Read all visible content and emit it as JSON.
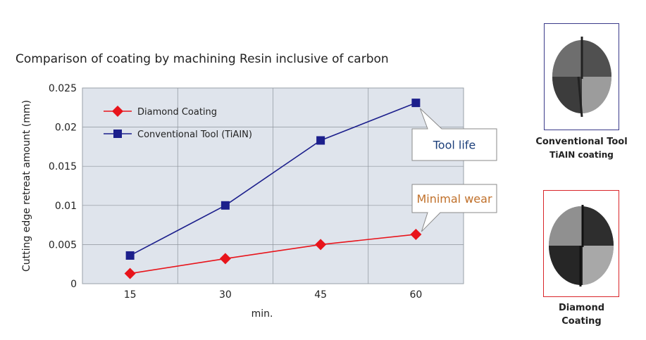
{
  "title": "Comparison of coating by machining Resin inclusive of carbon",
  "chart_data": {
    "type": "line",
    "title": "Comparison of coating by machining Resin inclusive of carbon",
    "xlabel": "min.",
    "ylabel": "Cutting edge retreat amount (mm)",
    "x": [
      15,
      30,
      45,
      60
    ],
    "x_tick_labels": [
      "15",
      "30",
      "45",
      "60"
    ],
    "ylim": [
      0,
      0.025
    ],
    "y_ticks": [
      0,
      0.005,
      0.01,
      0.015,
      0.02,
      0.025
    ],
    "y_tick_labels": [
      "0",
      "0.005",
      "0.01",
      "0.015",
      "0.02",
      "0.025"
    ],
    "grid": true,
    "legend_position": "top-left",
    "series": [
      {
        "name": "Diamond Coating",
        "values": [
          0.0013,
          0.0032,
          0.005,
          0.0063
        ],
        "color": "#e8141b",
        "marker": "diamond"
      },
      {
        "name": "Conventional Tool (TiAIN)",
        "values": [
          0.0036,
          0.01,
          0.0183,
          0.0231
        ],
        "color": "#1c1f8c",
        "marker": "square"
      }
    ],
    "annotations": [
      {
        "text": "Tool life",
        "series": 1,
        "point": 3,
        "color": "#1c3f7a"
      },
      {
        "text": "Minimal wear",
        "series": 0,
        "point": 3,
        "color": "#c0702a"
      }
    ]
  },
  "tools": {
    "conventional": {
      "caption": "Conventional Tool",
      "subcaption": "TiAIN coating",
      "border": "#3a3a8a"
    },
    "diamond": {
      "caption_line1": "Diamond",
      "caption_line2": "Coating",
      "border": "#d9252a"
    }
  }
}
